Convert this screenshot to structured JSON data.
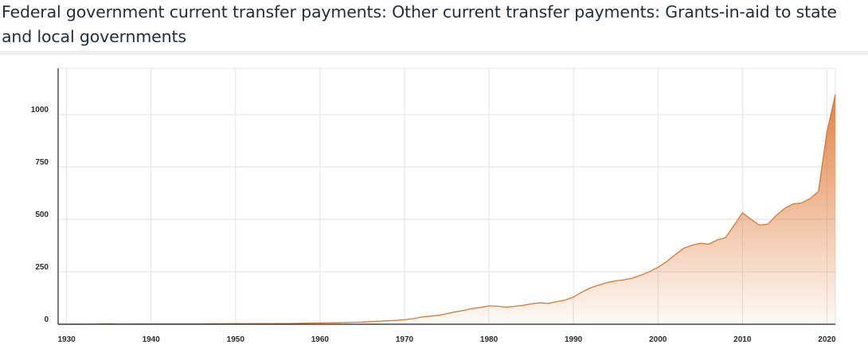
{
  "title": "Federal government current transfer payments: Other current transfer payments: Grants-in-aid to state and local governments",
  "colors": {
    "area_top": "#e07b39",
    "line": "#d9782f",
    "grid": "#e2e2e2",
    "axis": "#222222"
  },
  "chart_data": {
    "type": "area",
    "title": "Federal government current transfer payments: Other current transfer payments: Grants-in-aid to state and local governments",
    "xlabel": "",
    "ylabel": "",
    "xlim": [
      1929,
      2021
    ],
    "ylim": [
      0,
      1220
    ],
    "x_ticks": [
      "1930",
      "1940",
      "1950",
      "1960",
      "1970",
      "1980",
      "1990",
      "2000",
      "2010",
      "2020"
    ],
    "y_ticks": [
      "0",
      "250",
      "500",
      "750",
      "1000"
    ],
    "grid": true,
    "legend": "none",
    "x": [
      1929,
      1930,
      1931,
      1932,
      1933,
      1934,
      1935,
      1936,
      1937,
      1938,
      1939,
      1940,
      1941,
      1942,
      1943,
      1944,
      1945,
      1946,
      1947,
      1948,
      1949,
      1950,
      1951,
      1952,
      1953,
      1954,
      1955,
      1956,
      1957,
      1958,
      1959,
      1960,
      1961,
      1962,
      1963,
      1964,
      1965,
      1966,
      1967,
      1968,
      1969,
      1970,
      1971,
      1972,
      1973,
      1974,
      1975,
      1976,
      1977,
      1978,
      1979,
      1980,
      1981,
      1982,
      1983,
      1984,
      1985,
      1986,
      1987,
      1988,
      1989,
      1990,
      1991,
      1992,
      1993,
      1994,
      1995,
      1996,
      1997,
      1998,
      1999,
      2000,
      2001,
      2002,
      2003,
      2004,
      2005,
      2006,
      2007,
      2008,
      2009,
      2010,
      2011,
      2012,
      2013,
      2014,
      2015,
      2016,
      2017,
      2018,
      2019,
      2020,
      2021
    ],
    "values": [
      0.1,
      0.1,
      0.3,
      0.3,
      0.6,
      1.5,
      2.5,
      1.2,
      1.0,
      1.2,
      1.4,
      1.3,
      1.3,
      1.3,
      1.3,
      1.3,
      1.2,
      1.5,
      2.1,
      2.4,
      2.8,
      2.7,
      2.7,
      2.8,
      3.0,
      2.9,
      3.0,
      3.3,
      3.8,
      4.7,
      5.6,
      6.1,
      6.5,
      7.4,
      8.1,
      9.4,
      10.2,
      12.6,
      14.1,
      16.3,
      18.2,
      21.7,
      26.6,
      34.0,
      38.6,
      41.9,
      50.3,
      59.0,
      65.9,
      75.0,
      79.8,
      87.5,
      86.3,
      81.5,
      85.3,
      89.8,
      97.2,
      102.6,
      98.9,
      107.4,
      115.0,
      129.8,
      153.2,
      173.3,
      187.1,
      198.8,
      207.0,
      212.2,
      220.1,
      234.5,
      251.2,
      271.0,
      298.3,
      330.0,
      361.6,
      376.5,
      386.2,
      381.7,
      401.7,
      413.2,
      470.7,
      531.1,
      501.2,
      472.5,
      477.2,
      518.9,
      552.4,
      573.4,
      578.6,
      598.8,
      633.4,
      915.9,
      1095.8
    ]
  }
}
